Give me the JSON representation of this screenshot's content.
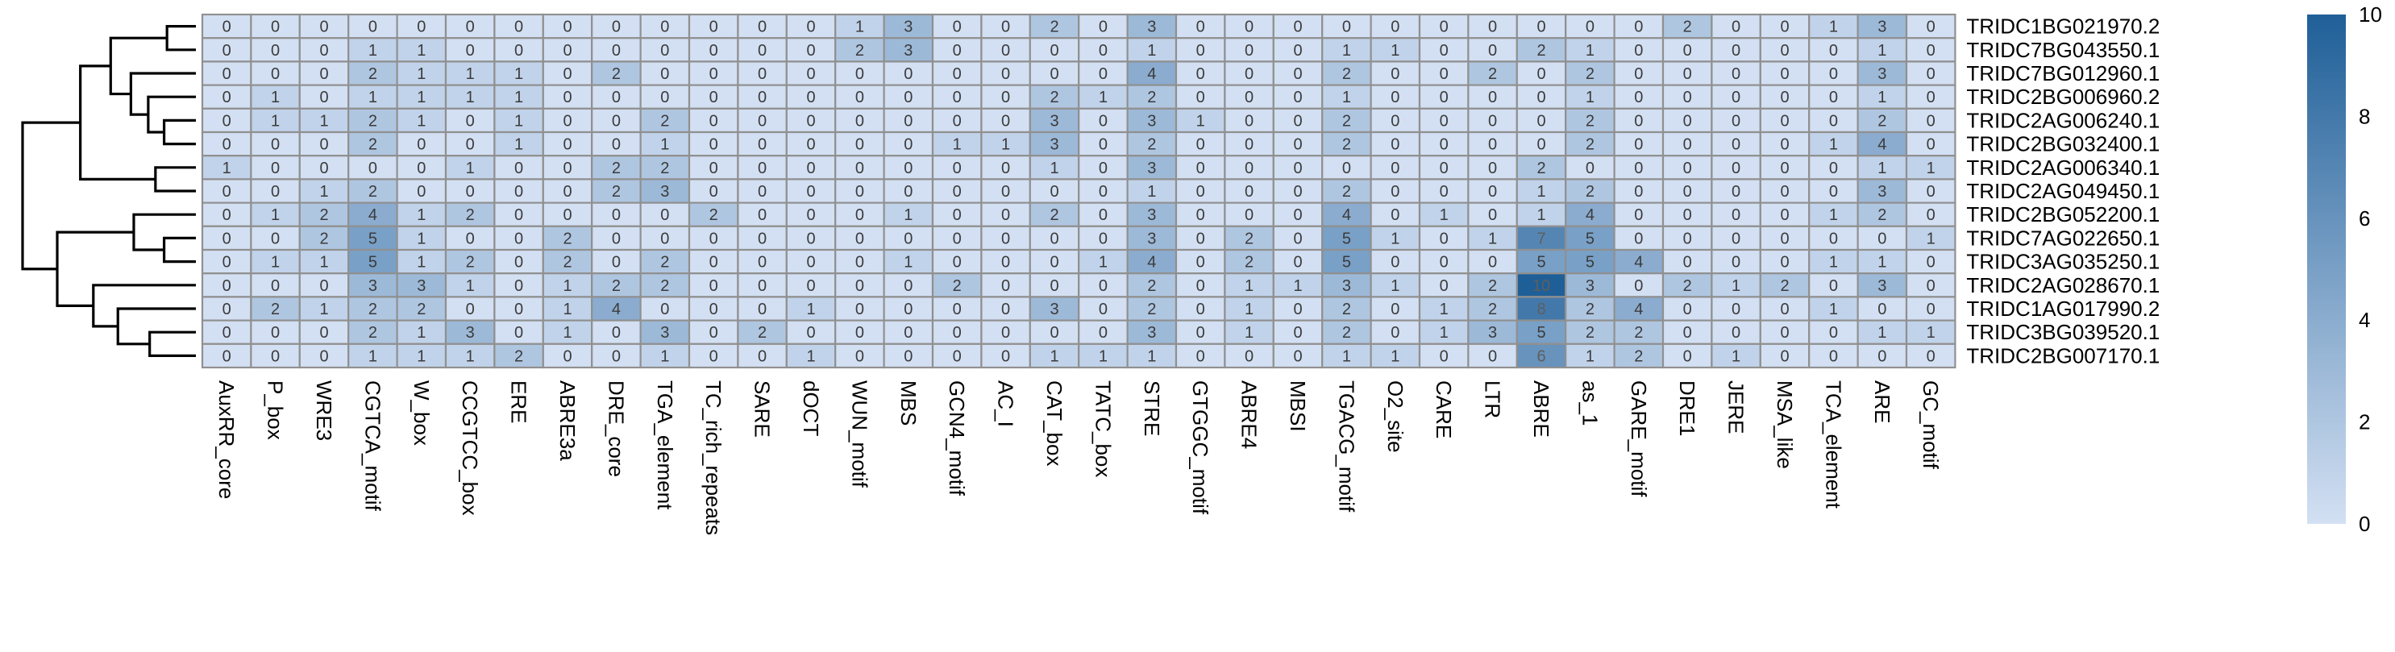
{
  "chart_data": {
    "type": "heatmap",
    "title": "",
    "xlabel": "",
    "ylabel": "",
    "columns": [
      "AuxRR_core",
      "P_box",
      "WRE3",
      "CGTCA_motif",
      "W_box",
      "CCGTCC_box",
      "ERE",
      "ABRE3a",
      "DRE_core",
      "TGA_element",
      "TC_rich_repeats",
      "SARE",
      "dOCT",
      "WUN_motif",
      "MBS",
      "GCN4_motif",
      "AC_I",
      "CAT_box",
      "TATC_box",
      "STRE",
      "GTGGC_motif",
      "ABRE4",
      "MBSI",
      "TGACG_motif",
      "O2_site",
      "CARE",
      "LTR",
      "ABRE",
      "as_1",
      "GARE_motif",
      "DRE1",
      "JERE",
      "MSA_like",
      "TCA_element",
      "ARE",
      "GC_motif"
    ],
    "rows": [
      "TRIDC1BG021970.2",
      "TRIDC7BG043550.1",
      "TRIDC7BG012960.1",
      "TRIDC2BG006960.2",
      "TRIDC2AG006240.1",
      "TRIDC2BG032400.1",
      "TRIDC2AG006340.1",
      "TRIDC2AG049450.1",
      "TRIDC2BG052200.1",
      "TRIDC7AG022650.1",
      "TRIDC3AG035250.1",
      "TRIDC2AG028670.1",
      "TRIDC1AG017990.2",
      "TRIDC3BG039520.1",
      "TRIDC2BG007170.1"
    ],
    "values": [
      [
        0,
        0,
        0,
        0,
        0,
        0,
        0,
        0,
        0,
        0,
        0,
        0,
        0,
        1,
        3,
        0,
        0,
        2,
        0,
        3,
        0,
        0,
        0,
        0,
        0,
        0,
        0,
        0,
        0,
        0,
        2,
        0,
        0,
        1,
        3,
        0
      ],
      [
        0,
        0,
        0,
        1,
        1,
        0,
        0,
        0,
        0,
        0,
        0,
        0,
        0,
        2,
        3,
        0,
        0,
        0,
        0,
        1,
        0,
        0,
        0,
        1,
        1,
        0,
        0,
        2,
        1,
        0,
        0,
        0,
        0,
        0,
        1,
        0
      ],
      [
        0,
        0,
        0,
        2,
        1,
        1,
        1,
        0,
        2,
        0,
        0,
        0,
        0,
        0,
        0,
        0,
        0,
        0,
        0,
        4,
        0,
        0,
        0,
        2,
        0,
        0,
        2,
        0,
        2,
        0,
        0,
        0,
        0,
        0,
        3,
        0
      ],
      [
        0,
        1,
        0,
        1,
        1,
        1,
        1,
        0,
        0,
        0,
        0,
        0,
        0,
        0,
        0,
        0,
        0,
        2,
        1,
        2,
        0,
        0,
        0,
        1,
        0,
        0,
        0,
        0,
        1,
        0,
        0,
        0,
        0,
        0,
        1,
        0
      ],
      [
        0,
        1,
        1,
        2,
        1,
        0,
        1,
        0,
        0,
        2,
        0,
        0,
        0,
        0,
        0,
        0,
        0,
        3,
        0,
        3,
        1,
        0,
        0,
        2,
        0,
        0,
        0,
        0,
        2,
        0,
        0,
        0,
        0,
        0,
        2,
        0
      ],
      [
        0,
        0,
        0,
        2,
        0,
        0,
        1,
        0,
        0,
        1,
        0,
        0,
        0,
        0,
        0,
        1,
        1,
        3,
        0,
        2,
        0,
        0,
        0,
        2,
        0,
        0,
        0,
        0,
        2,
        0,
        0,
        0,
        0,
        1,
        4,
        0
      ],
      [
        1,
        0,
        0,
        0,
        0,
        1,
        0,
        0,
        2,
        2,
        0,
        0,
        0,
        0,
        0,
        0,
        0,
        1,
        0,
        3,
        0,
        0,
        0,
        0,
        0,
        0,
        0,
        2,
        0,
        0,
        0,
        0,
        0,
        0,
        1,
        1
      ],
      [
        0,
        0,
        1,
        2,
        0,
        0,
        0,
        0,
        2,
        3,
        0,
        0,
        0,
        0,
        0,
        0,
        0,
        0,
        0,
        1,
        0,
        0,
        0,
        2,
        0,
        0,
        0,
        1,
        2,
        0,
        0,
        0,
        0,
        0,
        3,
        0
      ],
      [
        0,
        1,
        2,
        4,
        1,
        2,
        0,
        0,
        0,
        0,
        2,
        0,
        0,
        0,
        1,
        0,
        0,
        2,
        0,
        3,
        0,
        0,
        0,
        4,
        0,
        1,
        0,
        1,
        4,
        0,
        0,
        0,
        0,
        1,
        2,
        0
      ],
      [
        0,
        0,
        2,
        5,
        1,
        0,
        0,
        2,
        0,
        0,
        0,
        0,
        0,
        0,
        0,
        0,
        0,
        0,
        0,
        3,
        0,
        2,
        0,
        5,
        1,
        0,
        1,
        7,
        5,
        0,
        0,
        0,
        0,
        0,
        0,
        1
      ],
      [
        0,
        1,
        1,
        5,
        1,
        2,
        0,
        2,
        0,
        2,
        0,
        0,
        0,
        0,
        1,
        0,
        0,
        0,
        1,
        4,
        0,
        2,
        0,
        5,
        0,
        0,
        0,
        5,
        5,
        4,
        0,
        0,
        0,
        1,
        1,
        0
      ],
      [
        0,
        0,
        0,
        3,
        3,
        1,
        0,
        1,
        2,
        2,
        0,
        0,
        0,
        0,
        0,
        2,
        0,
        0,
        0,
        2,
        0,
        1,
        1,
        3,
        1,
        0,
        2,
        10,
        3,
        0,
        2,
        1,
        2,
        0,
        3,
        0
      ],
      [
        0,
        2,
        1,
        2,
        2,
        0,
        0,
        1,
        4,
        0,
        0,
        0,
        1,
        0,
        0,
        0,
        0,
        3,
        0,
        2,
        0,
        1,
        0,
        2,
        0,
        1,
        2,
        8,
        2,
        4,
        0,
        0,
        0,
        1,
        0,
        0
      ],
      [
        0,
        0,
        0,
        2,
        1,
        3,
        0,
        1,
        0,
        3,
        0,
        2,
        0,
        0,
        0,
        0,
        0,
        0,
        0,
        3,
        0,
        1,
        0,
        2,
        0,
        1,
        3,
        5,
        2,
        2,
        0,
        0,
        0,
        0,
        1,
        1
      ],
      [
        0,
        0,
        0,
        1,
        1,
        1,
        2,
        0,
        0,
        1,
        0,
        0,
        1,
        0,
        0,
        0,
        0,
        1,
        1,
        1,
        0,
        0,
        0,
        1,
        1,
        0,
        0,
        6,
        1,
        2,
        0,
        1,
        0,
        0,
        0,
        0
      ]
    ],
    "color_scale": {
      "min": 0,
      "max": 10,
      "ticks": [
        0,
        2,
        4,
        6,
        8,
        10
      ],
      "low_color": "#d3e0f3",
      "high_color": "#1f5f98"
    },
    "cell_border_color": "#909090",
    "dark_text_color": "#5e5e5e",
    "light_text_color": "#3b3b3b",
    "dendrogram": {
      "leaf_order": [
        0,
        1,
        2,
        3,
        4,
        5,
        6,
        7,
        8,
        9,
        10,
        11,
        12,
        13,
        14
      ],
      "merges": [
        [
          0,
          1,
          2
        ],
        [
          4,
          5,
          2.2
        ],
        [
          3,
          16,
          3.3
        ],
        [
          2,
          17,
          4.5
        ],
        [
          15,
          18,
          5.9
        ],
        [
          6,
          7,
          2.8
        ],
        [
          19,
          20,
          8
        ],
        [
          9,
          10,
          2.2
        ],
        [
          8,
          22,
          4.3
        ],
        [
          13,
          14,
          3.2
        ],
        [
          12,
          24,
          5.4
        ],
        [
          11,
          25,
          7.1
        ],
        [
          23,
          26,
          9.6
        ],
        [
          21,
          27,
          12
        ]
      ]
    }
  }
}
